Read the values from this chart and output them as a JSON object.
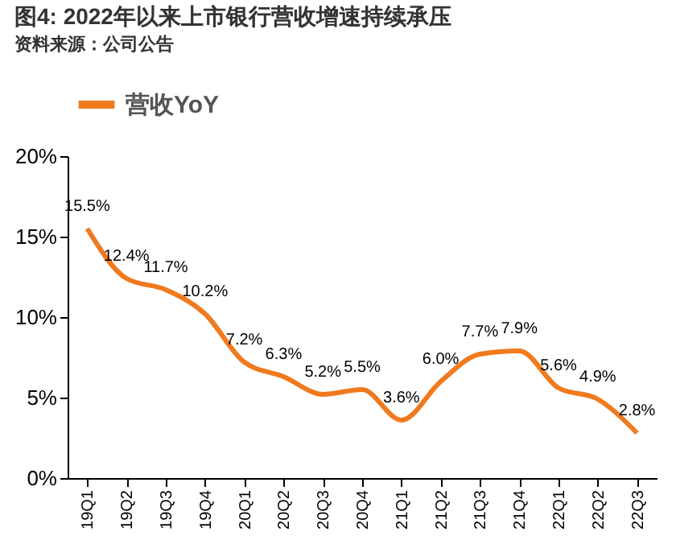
{
  "chart_data": {
    "type": "line",
    "title": "图4: 2022年以来上市银行营收增速持续承压",
    "subtitle": "资料来源：公司公告",
    "categories": [
      "19Q1",
      "19Q2",
      "19Q3",
      "19Q4",
      "20Q1",
      "20Q2",
      "20Q3",
      "20Q4",
      "21Q1",
      "21Q2",
      "21Q3",
      "21Q4",
      "22Q1",
      "22Q2",
      "22Q3"
    ],
    "series": [
      {
        "name": "营收YoY",
        "color": "#f07a1e",
        "values": [
          15.5,
          12.4,
          11.7,
          10.2,
          7.2,
          6.3,
          5.2,
          5.5,
          3.6,
          6.0,
          7.7,
          7.9,
          5.6,
          4.9,
          2.8
        ],
        "value_labels": [
          "15.5%",
          "12.4%",
          "11.7%",
          "10.2%",
          "7.2%",
          "6.3%",
          "5.2%",
          "5.5%",
          "3.6%",
          "6.0%",
          "7.7%",
          "7.9%",
          "5.6%",
          "4.9%",
          "2.8%"
        ]
      }
    ],
    "ylim": [
      0,
      20
    ],
    "yticks": [
      {
        "value": 0,
        "label": "0%"
      },
      {
        "value": 5,
        "label": "5%"
      },
      {
        "value": 10,
        "label": "10%"
      },
      {
        "value": 15,
        "label": "15%"
      },
      {
        "value": 20,
        "label": "20%"
      }
    ],
    "legend": "top",
    "grid": false,
    "marker": "none",
    "line_style": "solid"
  }
}
